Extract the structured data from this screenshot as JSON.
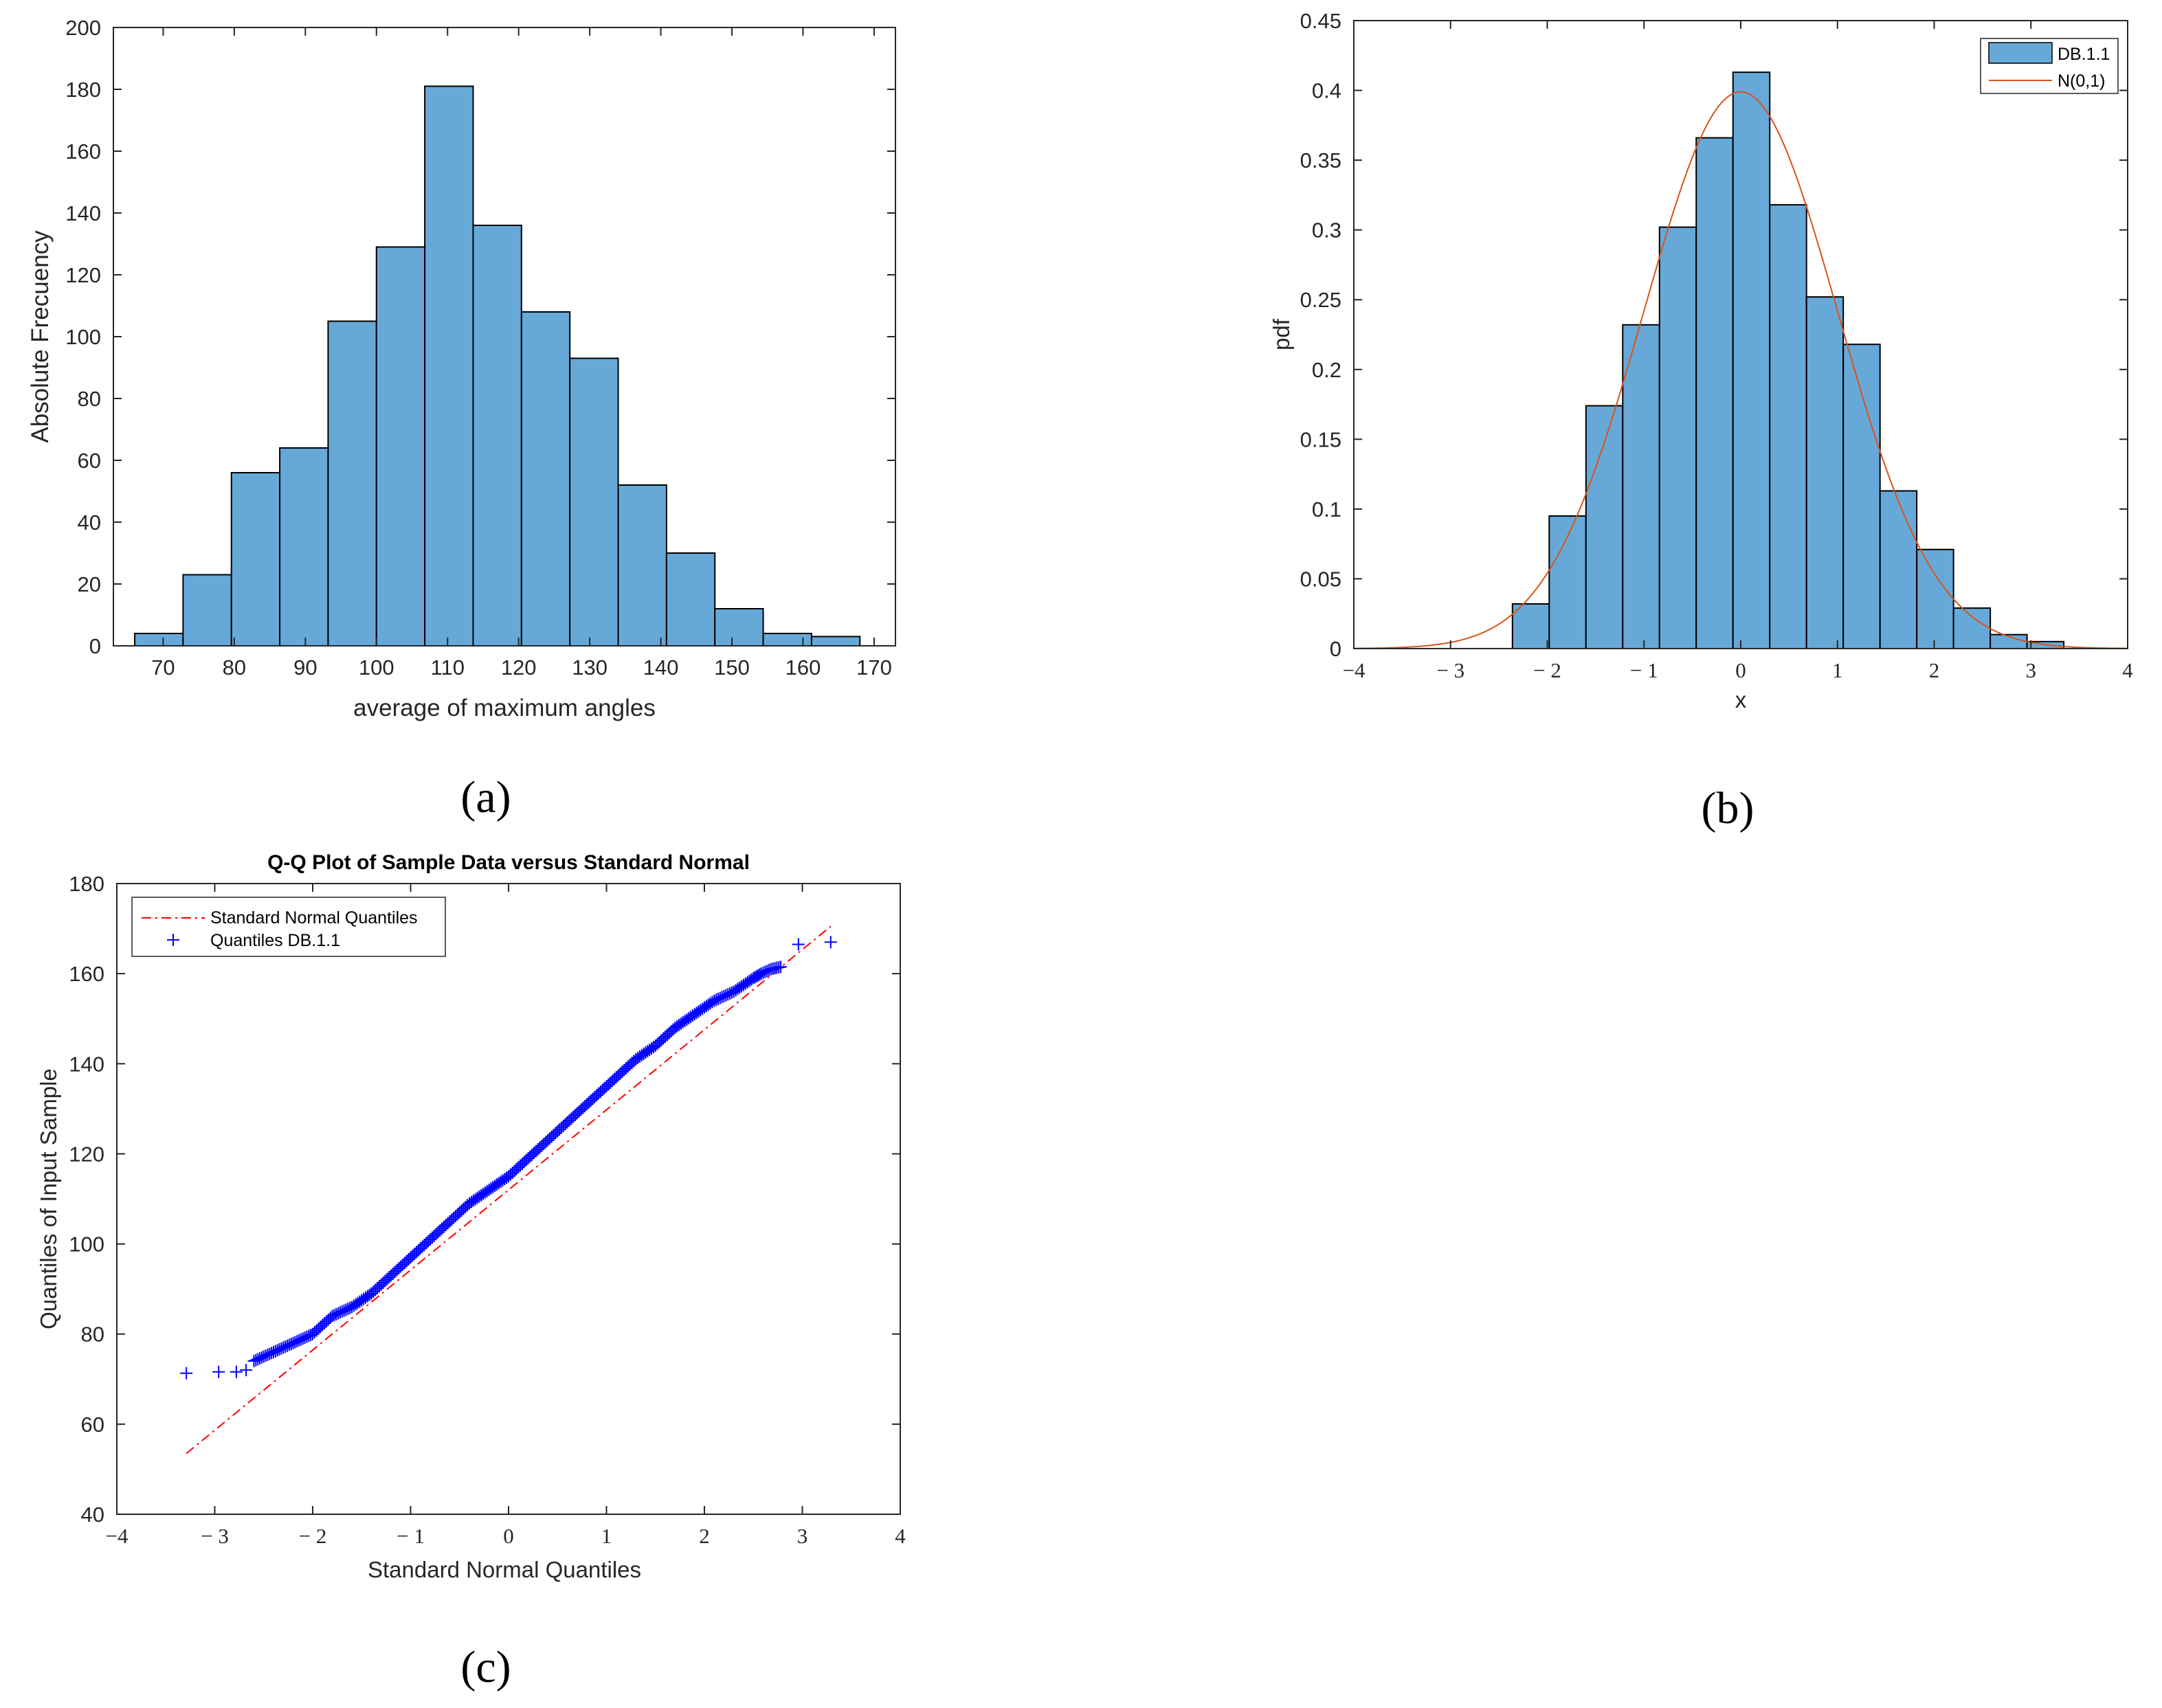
{
  "chart_data": [
    {
      "type": "bar",
      "panel": "a",
      "caption": "(a)",
      "xlabel": "average of maximum angles",
      "ylabel": "Absolute Frecuency",
      "xlim": [
        63,
        173
      ],
      "ylim": [
        0,
        200
      ],
      "xticks": [
        70,
        80,
        90,
        100,
        110,
        120,
        130,
        140,
        150,
        160,
        170
      ],
      "yticks": [
        0,
        20,
        40,
        60,
        80,
        100,
        120,
        140,
        160,
        180,
        200
      ],
      "bin_edges": [
        66,
        72.8,
        79.6,
        86.4,
        93.2,
        100,
        106.8,
        113.6,
        120.4,
        127.2,
        134,
        140.8,
        147.6,
        154.4,
        161.2,
        168
      ],
      "values": [
        4,
        23,
        56,
        64,
        105,
        129,
        181,
        136,
        108,
        93,
        52,
        30,
        12,
        4,
        3
      ],
      "bar_color": "#66a9d9"
    },
    {
      "type": "bar",
      "panel": "b",
      "caption": "(b)",
      "xlabel": "x",
      "ylabel": "pdf",
      "xlim": [
        -4,
        4
      ],
      "ylim": [
        0,
        0.45
      ],
      "xticks": [
        -4,
        -3,
        -2,
        -1,
        0,
        1,
        2,
        3,
        4
      ],
      "xtick_labels": [
        "−4",
        "− 3",
        "− 2",
        "− 1",
        "0",
        "1",
        "2",
        "3",
        "4"
      ],
      "yticks": [
        0,
        0.05,
        0.1,
        0.15,
        0.2,
        0.25,
        0.3,
        0.35,
        0.4,
        0.45
      ],
      "ytick_labels": [
        "0",
        "0.05",
        "0.1",
        "0.15",
        "0.2",
        "0.25",
        "0.3",
        "0.35",
        "0.4",
        "0.45"
      ],
      "bin_edges": [
        -2.36,
        -1.98,
        -1.6,
        -1.22,
        -0.84,
        -0.46,
        -0.08,
        0.3,
        0.68,
        1.06,
        1.44,
        1.82,
        2.2,
        2.58,
        2.96,
        3.34
      ],
      "values": [
        0.032,
        0.095,
        0.174,
        0.232,
        0.302,
        0.366,
        0.413,
        0.318,
        0.252,
        0.218,
        0.113,
        0.071,
        0.029,
        0.01,
        0.005
      ],
      "bar_color": "#66a9d9",
      "series": [
        {
          "name": "DB.1.1",
          "kind": "histogram"
        },
        {
          "name": "N(0,1)",
          "kind": "line",
          "function": "standard normal pdf",
          "color": "#d95319"
        }
      ],
      "legend_position": "top-right"
    },
    {
      "type": "scatter",
      "panel": "c",
      "caption": "(c)",
      "title": "Q-Q Plot of Sample Data versus Standard Normal",
      "xlabel": "Standard Normal Quantiles",
      "ylabel": "Quantiles of Input Sample",
      "xlim": [
        -4,
        4
      ],
      "ylim": [
        40,
        180
      ],
      "xticks": [
        -4,
        -3,
        -2,
        -1,
        0,
        1,
        2,
        3,
        4
      ],
      "xtick_labels": [
        "−4",
        "− 3",
        "− 2",
        "− 1",
        "0",
        "1",
        "2",
        "3",
        "4"
      ],
      "yticks": [
        40,
        60,
        80,
        100,
        120,
        140,
        160,
        180
      ],
      "series": [
        {
          "name": "Standard Normal Quantiles",
          "kind": "line",
          "style": "dash-dot",
          "color": "#ff0000",
          "x": [
            -3.29,
            3.29
          ],
          "y": [
            53.5,
            170.5
          ]
        },
        {
          "name": "Quantiles DB.1.1",
          "kind": "markers",
          "marker": "+",
          "color": "#0000ff",
          "x": [
            -3.29,
            -2.96,
            -2.78,
            -2.68,
            -2.6,
            -2.5,
            -2.4,
            -2.3,
            -2.2,
            -2.1,
            -2.0,
            -1.9,
            -1.8,
            -1.7,
            -1.6,
            -1.5,
            -1.4,
            -1.3,
            -1.2,
            -1.1,
            -1.0,
            -0.9,
            -0.8,
            -0.7,
            -0.6,
            -0.5,
            -0.4,
            -0.3,
            -0.2,
            -0.1,
            0.0,
            0.1,
            0.2,
            0.3,
            0.4,
            0.5,
            0.6,
            0.7,
            0.8,
            0.9,
            1.0,
            1.1,
            1.2,
            1.3,
            1.4,
            1.5,
            1.6,
            1.7,
            1.8,
            1.9,
            2.0,
            2.1,
            2.2,
            2.3,
            2.4,
            2.5,
            2.58,
            2.68,
            2.78,
            2.96,
            3.29
          ],
          "y": [
            71.3,
            71.6,
            71.6,
            72.0,
            74.0,
            75.0,
            76.0,
            77.0,
            78.0,
            79.0,
            80.0,
            82.0,
            84.0,
            85.0,
            86.0,
            87.5,
            89.0,
            91.0,
            93.0,
            95.0,
            97.0,
            99.0,
            101.0,
            103.0,
            105.0,
            107.0,
            109.0,
            110.5,
            112.0,
            113.5,
            115.0,
            117.0,
            119.0,
            121.0,
            123.0,
            125.0,
            127.0,
            129.0,
            131.0,
            133.0,
            135.0,
            137.0,
            139.0,
            141.0,
            142.5,
            144.0,
            146.0,
            148.0,
            149.5,
            151.0,
            152.5,
            154.0,
            155.0,
            156.0,
            157.5,
            159.0,
            160.0,
            161.0,
            161.5,
            166.5,
            167.0
          ]
        }
      ],
      "legend_position": "top-left"
    }
  ]
}
